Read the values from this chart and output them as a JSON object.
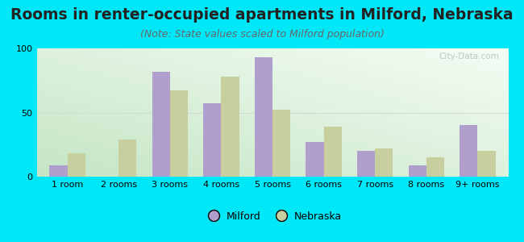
{
  "title": "Rooms in renter-occupied apartments in Milford, Nebraska",
  "subtitle": "(Note: State values scaled to Milford population)",
  "categories": [
    "1 room",
    "2 rooms",
    "3 rooms",
    "4 rooms",
    "5 rooms",
    "6 rooms",
    "7 rooms",
    "8 rooms",
    "9+ rooms"
  ],
  "milford_values": [
    9,
    0,
    82,
    57,
    93,
    27,
    20,
    9,
    40
  ],
  "nebraska_values": [
    18,
    29,
    67,
    78,
    52,
    39,
    22,
    15,
    20
  ],
  "milford_color": "#b09fcc",
  "nebraska_color": "#c8cf9e",
  "ylim": [
    0,
    100
  ],
  "yticks": [
    0,
    50,
    100
  ],
  "background_outer": "#00e8f8",
  "grad_top_left": "#c8e8c8",
  "grad_bottom_right": "#f0f8f0",
  "watermark": "City-Data.com",
  "bar_width": 0.35,
  "title_fontsize": 13.5,
  "subtitle_fontsize": 9,
  "legend_milford": "Milford",
  "legend_nebraska": "Nebraska",
  "grid_color": "#e0e8e0",
  "tick_fontsize": 8
}
